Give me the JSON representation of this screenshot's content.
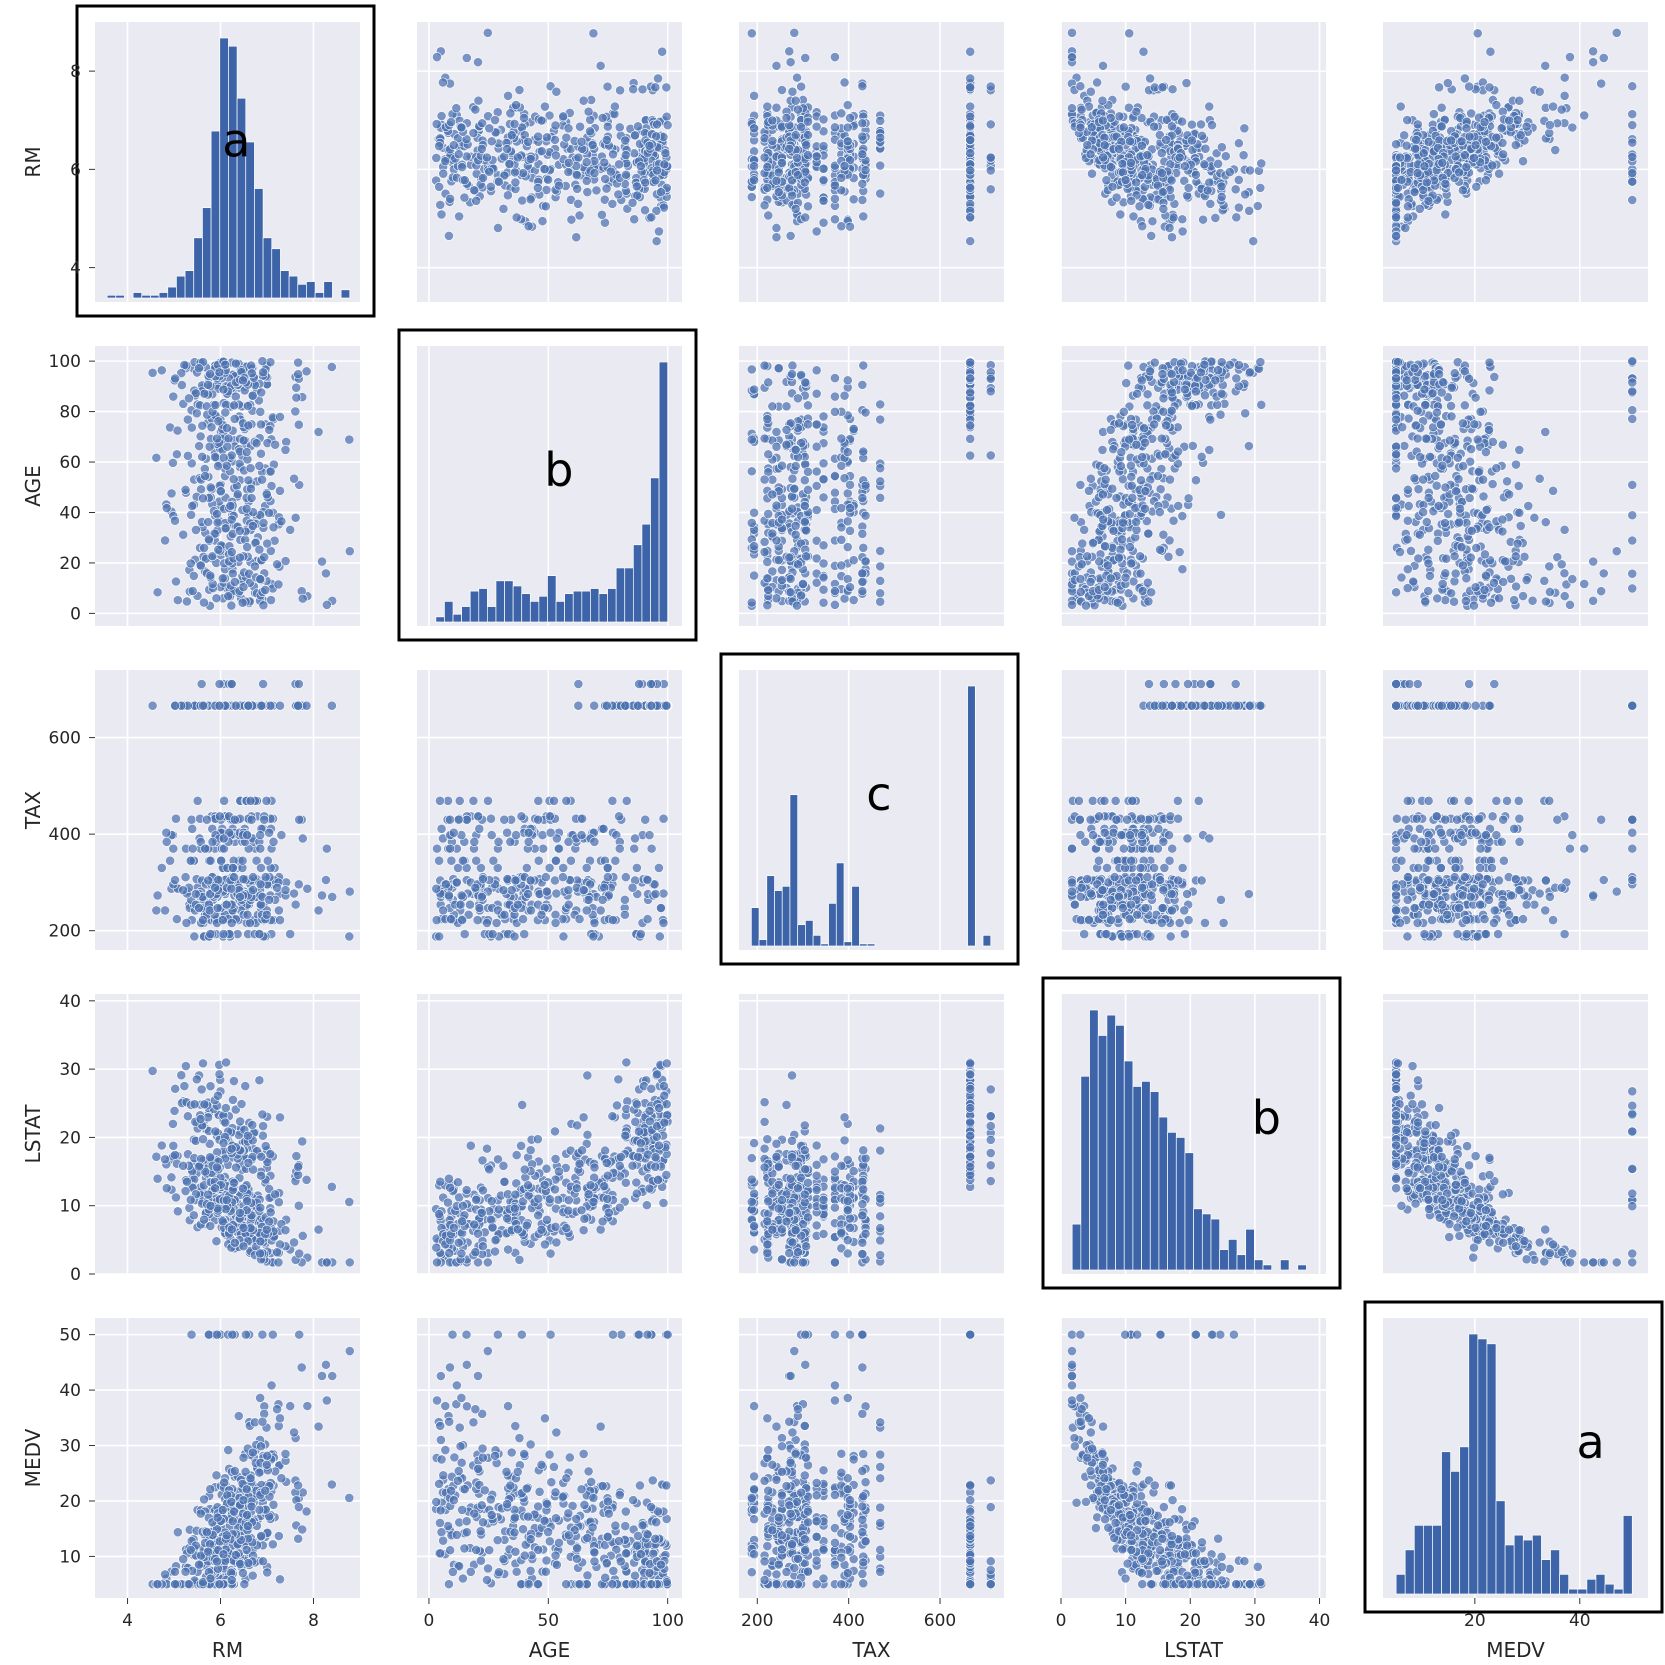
{
  "chart_data": {
    "type": "scatter",
    "kind": "pairplot",
    "variables": [
      "RM",
      "AGE",
      "TAX",
      "LSTAT",
      "MEDV"
    ],
    "axes": {
      "RM": {
        "lim": [
          3.3,
          9.0
        ],
        "ticks": [
          4,
          6,
          8
        ]
      },
      "AGE": {
        "lim": [
          -5,
          106
        ],
        "ticks": [
          0,
          20,
          40,
          60,
          80,
          100
        ],
        "xticks": [
          0,
          50,
          100
        ]
      },
      "TAX": {
        "lim": [
          160,
          740
        ],
        "ticks": [
          200,
          400,
          600
        ]
      },
      "LSTAT": {
        "lim": [
          0,
          41
        ],
        "ticks": [
          0,
          10,
          20,
          30,
          40
        ]
      },
      "MEDV": {
        "lim": [
          2.5,
          53
        ],
        "ticks": [
          10,
          20,
          30,
          40,
          50
        ],
        "xticks": [
          20,
          40
        ]
      }
    },
    "histograms": {
      "RM": {
        "range": [
          3.56,
          8.78
        ],
        "counts": [
          1,
          1,
          0,
          2,
          1,
          1,
          2,
          4,
          8,
          10,
          22,
          33,
          61,
          95,
          92,
          73,
          57,
          40,
          22,
          18,
          10,
          8,
          5,
          6,
          2,
          6,
          0,
          3
        ]
      },
      "AGE": {
        "range": [
          2.9,
          100
        ],
        "counts": [
          2,
          8,
          3,
          6,
          12,
          13,
          6,
          16,
          16,
          14,
          11,
          8,
          10,
          18,
          8,
          11,
          12,
          12,
          13,
          11,
          13,
          21,
          21,
          30,
          38,
          56,
          101
        ]
      },
      "TAX": {
        "range": [
          187,
          711
        ],
        "counts": [
          18,
          3,
          33,
          26,
          28,
          71,
          10,
          12,
          5,
          1,
          20,
          39,
          2,
          28,
          1,
          1,
          0,
          0,
          0,
          0,
          0,
          0,
          0,
          0,
          0,
          0,
          0,
          0,
          122,
          0,
          5
        ]
      },
      "LSTAT": {
        "range": [
          1.73,
          37.97
        ],
        "counts": [
          9,
          38,
          51,
          46,
          50,
          48,
          41,
          36,
          37,
          35,
          30,
          27,
          26,
          23,
          12,
          11,
          10,
          4,
          6,
          3,
          8,
          2,
          1,
          0,
          2,
          0,
          1
        ]
      },
      "MEDV": {
        "range": [
          5,
          50
        ],
        "counts": [
          4,
          9,
          14,
          14,
          14,
          29,
          25,
          30,
          53,
          52,
          51,
          19,
          10,
          12,
          11,
          12,
          7,
          9,
          4,
          1,
          1,
          3,
          4,
          2,
          1,
          16
        ]
      }
    },
    "labels": [
      "a",
      "b",
      "c",
      "b",
      "a"
    ]
  }
}
